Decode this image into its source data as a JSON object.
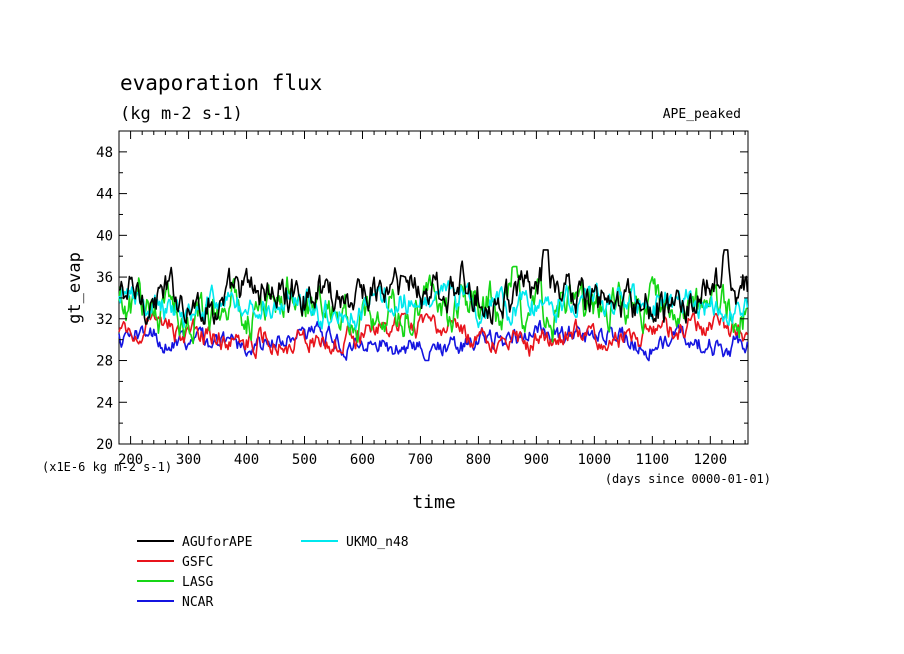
{
  "chart_data": {
    "type": "line",
    "title": "evaporation flux",
    "subtitle": "(kg m-2 s-1)",
    "experiment_label": "APE_peaked",
    "ylabel": "gt_evap",
    "ylabel_units": "(x1E-6 kg m-2 s-1)",
    "xlabel": "time",
    "xlabel_units": "(days since 0000-01-01)",
    "xlim": [
      180,
      1265
    ],
    "ylim": [
      20,
      50
    ],
    "x_ticks": [
      200,
      300,
      400,
      500,
      600,
      700,
      800,
      900,
      1000,
      1100,
      1200
    ],
    "y_ticks": [
      20,
      24,
      28,
      32,
      36,
      40,
      44,
      48
    ],
    "grid": false,
    "legend_position": "bottom-left",
    "series": [
      {
        "name": "AGUforAPE",
        "color": "#000000",
        "mean": 34.2,
        "min": 31.5,
        "max": 38.6,
        "peaks": [
          {
            "x": 915,
            "y": 38.2
          },
          {
            "x": 1225,
            "y": 38.6
          }
        ]
      },
      {
        "name": "GSFC",
        "color": "#e8141c",
        "mean": 30.5,
        "min": 28.2,
        "max": 32.5
      },
      {
        "name": "LASG",
        "color": "#16d616",
        "mean": 32.9,
        "min": 29.0,
        "max": 37.0,
        "peaks": [
          {
            "x": 865,
            "y": 36.8
          },
          {
            "x": 380,
            "y": 36.2
          }
        ]
      },
      {
        "name": "NCAR",
        "color": "#1414e0",
        "mean": 30.0,
        "min": 28.0,
        "max": 32.0
      },
      {
        "name": "UKMO_n48",
        "color": "#00e8ee",
        "mean": 33.5,
        "min": 31.0,
        "max": 36.5
      }
    ]
  }
}
